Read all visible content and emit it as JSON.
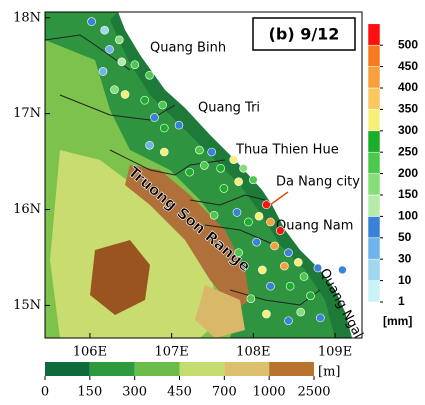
{
  "map": {
    "panel_label": "(b) 9/12",
    "xlim": [
      105.45,
      109.33
    ],
    "ylim": [
      14.66,
      18.06
    ],
    "xticks": [
      {
        "value": 106,
        "label": "106E"
      },
      {
        "value": 107,
        "label": "107E"
      },
      {
        "value": 108,
        "label": "108E"
      },
      {
        "value": 109,
        "label": "109E"
      }
    ],
    "yticks": [
      {
        "value": 15,
        "label": "15N"
      },
      {
        "value": 16,
        "label": "16N"
      },
      {
        "value": 17,
        "label": "17N"
      },
      {
        "value": 18,
        "label": "18N"
      }
    ],
    "places": [
      "Quang Binh",
      "Quang Tri",
      "Thua Thien Hue",
      "Da Nang city",
      "Quang Nam",
      "Quang Ngai",
      "Truong Son Range"
    ],
    "rain_colorbar": {
      "levels": [
        1,
        10,
        30,
        50,
        100,
        150,
        200,
        250,
        300,
        350,
        400,
        450,
        500
      ],
      "colors": [
        "#c8f4f8",
        "#9fd6f0",
        "#6fb4ea",
        "#3a82d8",
        "#b6ecaa",
        "#86de78",
        "#4cc84c",
        "#1cae2a",
        "#f6f07a",
        "#fbc860",
        "#f9a03c",
        "#f57a20",
        "#ff1010"
      ],
      "unit": "[mm]"
    },
    "elevation_colorbar": {
      "levels": [
        0,
        150,
        300,
        450,
        700,
        1000,
        2500
      ],
      "colors": [
        "#0e6a3a",
        "#2d9a3e",
        "#6bbd4a",
        "#c5dc6e",
        "#dcc070",
        "#b8742e"
      ],
      "unit": "[m]"
    },
    "stations": [
      {
        "lon": 106.02,
        "lat": 17.96,
        "rain": 60
      },
      {
        "lon": 106.18,
        "lat": 17.87,
        "rain": 20
      },
      {
        "lon": 106.36,
        "lat": 17.77,
        "rain": 150
      },
      {
        "lon": 106.24,
        "lat": 17.67,
        "rain": 40
      },
      {
        "lon": 106.39,
        "lat": 17.54,
        "rain": 120
      },
      {
        "lon": 106.55,
        "lat": 17.51,
        "rain": 200
      },
      {
        "lon": 106.73,
        "lat": 17.4,
        "rain": 220
      },
      {
        "lon": 106.16,
        "lat": 17.44,
        "rain": 30
      },
      {
        "lon": 106.3,
        "lat": 17.25,
        "rain": 180
      },
      {
        "lon": 106.43,
        "lat": 17.2,
        "rain": 320
      },
      {
        "lon": 106.67,
        "lat": 17.14,
        "rain": 250
      },
      {
        "lon": 106.89,
        "lat": 17.09,
        "rain": 220
      },
      {
        "lon": 106.79,
        "lat": 16.96,
        "rain": 60
      },
      {
        "lon": 106.91,
        "lat": 16.85,
        "rain": 260
      },
      {
        "lon": 107.09,
        "lat": 16.88,
        "rain": 70
      },
      {
        "lon": 106.73,
        "lat": 16.67,
        "rain": 40
      },
      {
        "lon": 106.91,
        "lat": 16.6,
        "rain": 330
      },
      {
        "lon": 107.34,
        "lat": 16.62,
        "rain": 230
      },
      {
        "lon": 107.49,
        "lat": 16.6,
        "rain": 60
      },
      {
        "lon": 107.22,
        "lat": 16.39,
        "rain": 270
      },
      {
        "lon": 107.4,
        "lat": 16.46,
        "rain": 210
      },
      {
        "lon": 107.6,
        "lat": 16.43,
        "rain": 280
      },
      {
        "lon": 107.76,
        "lat": 16.52,
        "rain": 320
      },
      {
        "lon": 107.88,
        "lat": 16.43,
        "rain": 160
      },
      {
        "lon": 107.64,
        "lat": 16.22,
        "rain": 250
      },
      {
        "lon": 107.82,
        "lat": 16.29,
        "rain": 330
      },
      {
        "lon": 108.0,
        "lat": 16.31,
        "rain": 230
      },
      {
        "lon": 108.16,
        "lat": 16.05,
        "rain": 600
      },
      {
        "lon": 108.07,
        "lat": 15.93,
        "rain": 320
      },
      {
        "lon": 108.21,
        "lat": 15.87,
        "rain": 430
      },
      {
        "lon": 108.33,
        "lat": 15.78,
        "rain": 550
      },
      {
        "lon": 107.94,
        "lat": 15.87,
        "rain": 260
      },
      {
        "lon": 107.8,
        "lat": 15.97,
        "rain": 60
      },
      {
        "lon": 107.52,
        "lat": 15.94,
        "rain": 230
      },
      {
        "lon": 108.04,
        "lat": 15.66,
        "rain": 70
      },
      {
        "lon": 108.26,
        "lat": 15.62,
        "rain": 420
      },
      {
        "lon": 108.43,
        "lat": 15.55,
        "rain": 70
      },
      {
        "lon": 108.38,
        "lat": 15.41,
        "rain": 440
      },
      {
        "lon": 108.55,
        "lat": 15.45,
        "rain": 330
      },
      {
        "lon": 107.82,
        "lat": 15.55,
        "rain": 230
      },
      {
        "lon": 108.11,
        "lat": 15.37,
        "rain": 320
      },
      {
        "lon": 108.21,
        "lat": 15.2,
        "rain": 70
      },
      {
        "lon": 108.45,
        "lat": 15.2,
        "rain": 260
      },
      {
        "lon": 108.62,
        "lat": 15.3,
        "rain": 230
      },
      {
        "lon": 108.79,
        "lat": 15.39,
        "rain": 60
      },
      {
        "lon": 109.09,
        "lat": 15.37,
        "rain": 80
      },
      {
        "lon": 108.7,
        "lat": 15.1,
        "rain": 250
      },
      {
        "lon": 108.58,
        "lat": 14.93,
        "rain": 170
      },
      {
        "lon": 108.82,
        "lat": 14.87,
        "rain": 60
      },
      {
        "lon": 107.97,
        "lat": 15.07,
        "rain": 240
      },
      {
        "lon": 108.16,
        "lat": 14.91,
        "rain": 330
      },
      {
        "lon": 108.43,
        "lat": 14.84,
        "rain": 60
      }
    ]
  }
}
